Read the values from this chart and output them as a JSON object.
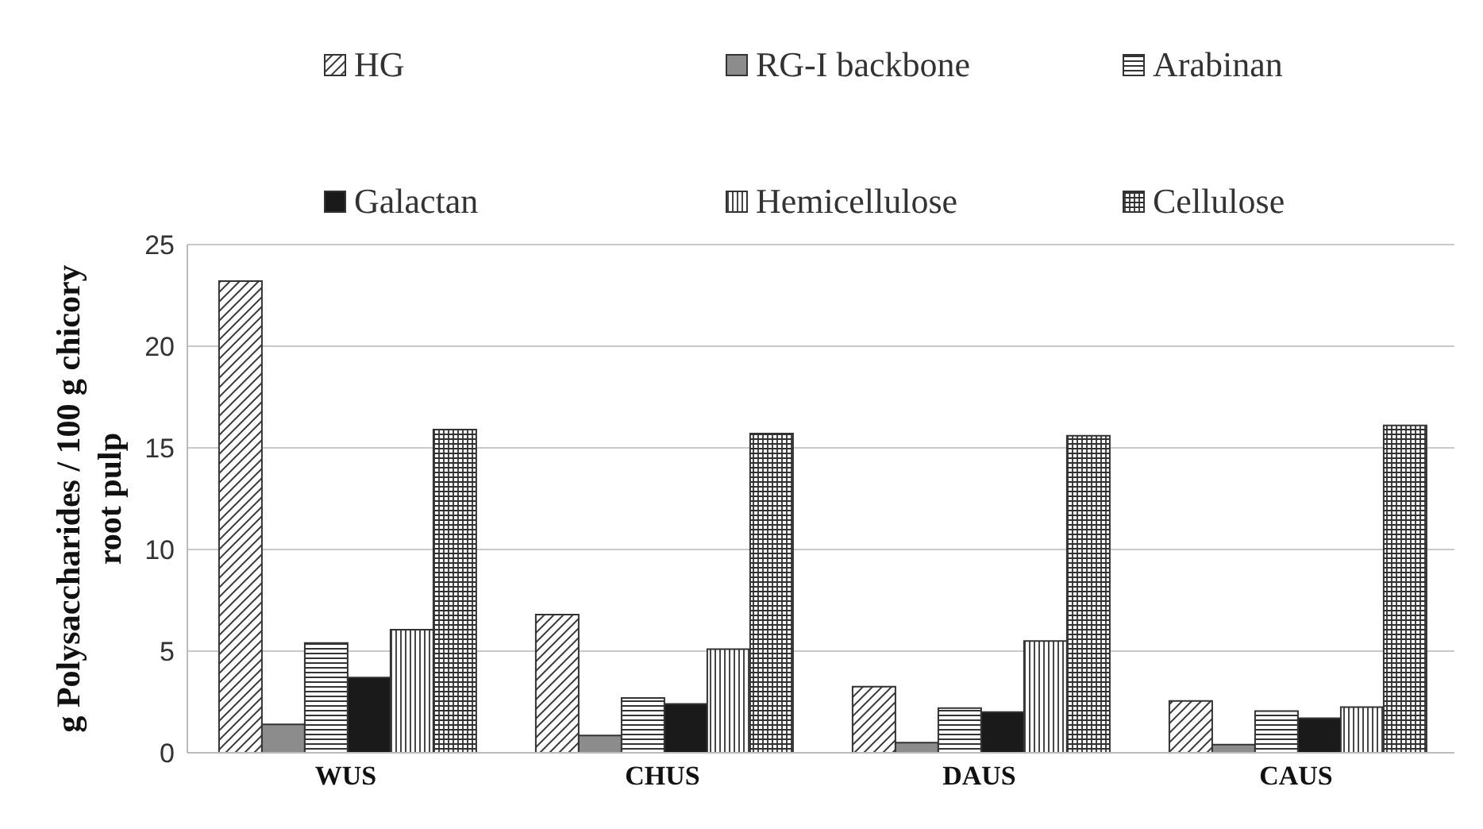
{
  "chart_data": {
    "type": "bar",
    "ylabel": "g Polysaccharides / 100 g chicory root pulp",
    "categories": [
      "WUS",
      "CHUS",
      "DAUS",
      "CAUS"
    ],
    "series": [
      {
        "name": "HG",
        "color": "#404040",
        "values": [
          23.2,
          6.8,
          3.25,
          2.55
        ]
      },
      {
        "name": "RG-I backbone",
        "color": "#8c8c8c",
        "values": [
          1.4,
          0.85,
          0.5,
          0.4
        ]
      },
      {
        "name": "Arabinan",
        "color": "#333333",
        "values": [
          5.4,
          2.7,
          2.2,
          2.05
        ]
      },
      {
        "name": "Galactan",
        "color": "#1a1a1a",
        "values": [
          3.7,
          2.4,
          2.0,
          1.7
        ]
      },
      {
        "name": "Hemicellulose",
        "color": "#333333",
        "values": [
          6.05,
          5.1,
          5.5,
          2.25
        ]
      },
      {
        "name": "Cellulose",
        "color": "#303030",
        "values": [
          15.9,
          15.7,
          15.6,
          16.1
        ]
      }
    ],
    "ylim": [
      0,
      25
    ],
    "yticks": [
      0,
      5,
      10,
      15,
      20,
      25
    ],
    "grid": "y",
    "legend": "top"
  }
}
